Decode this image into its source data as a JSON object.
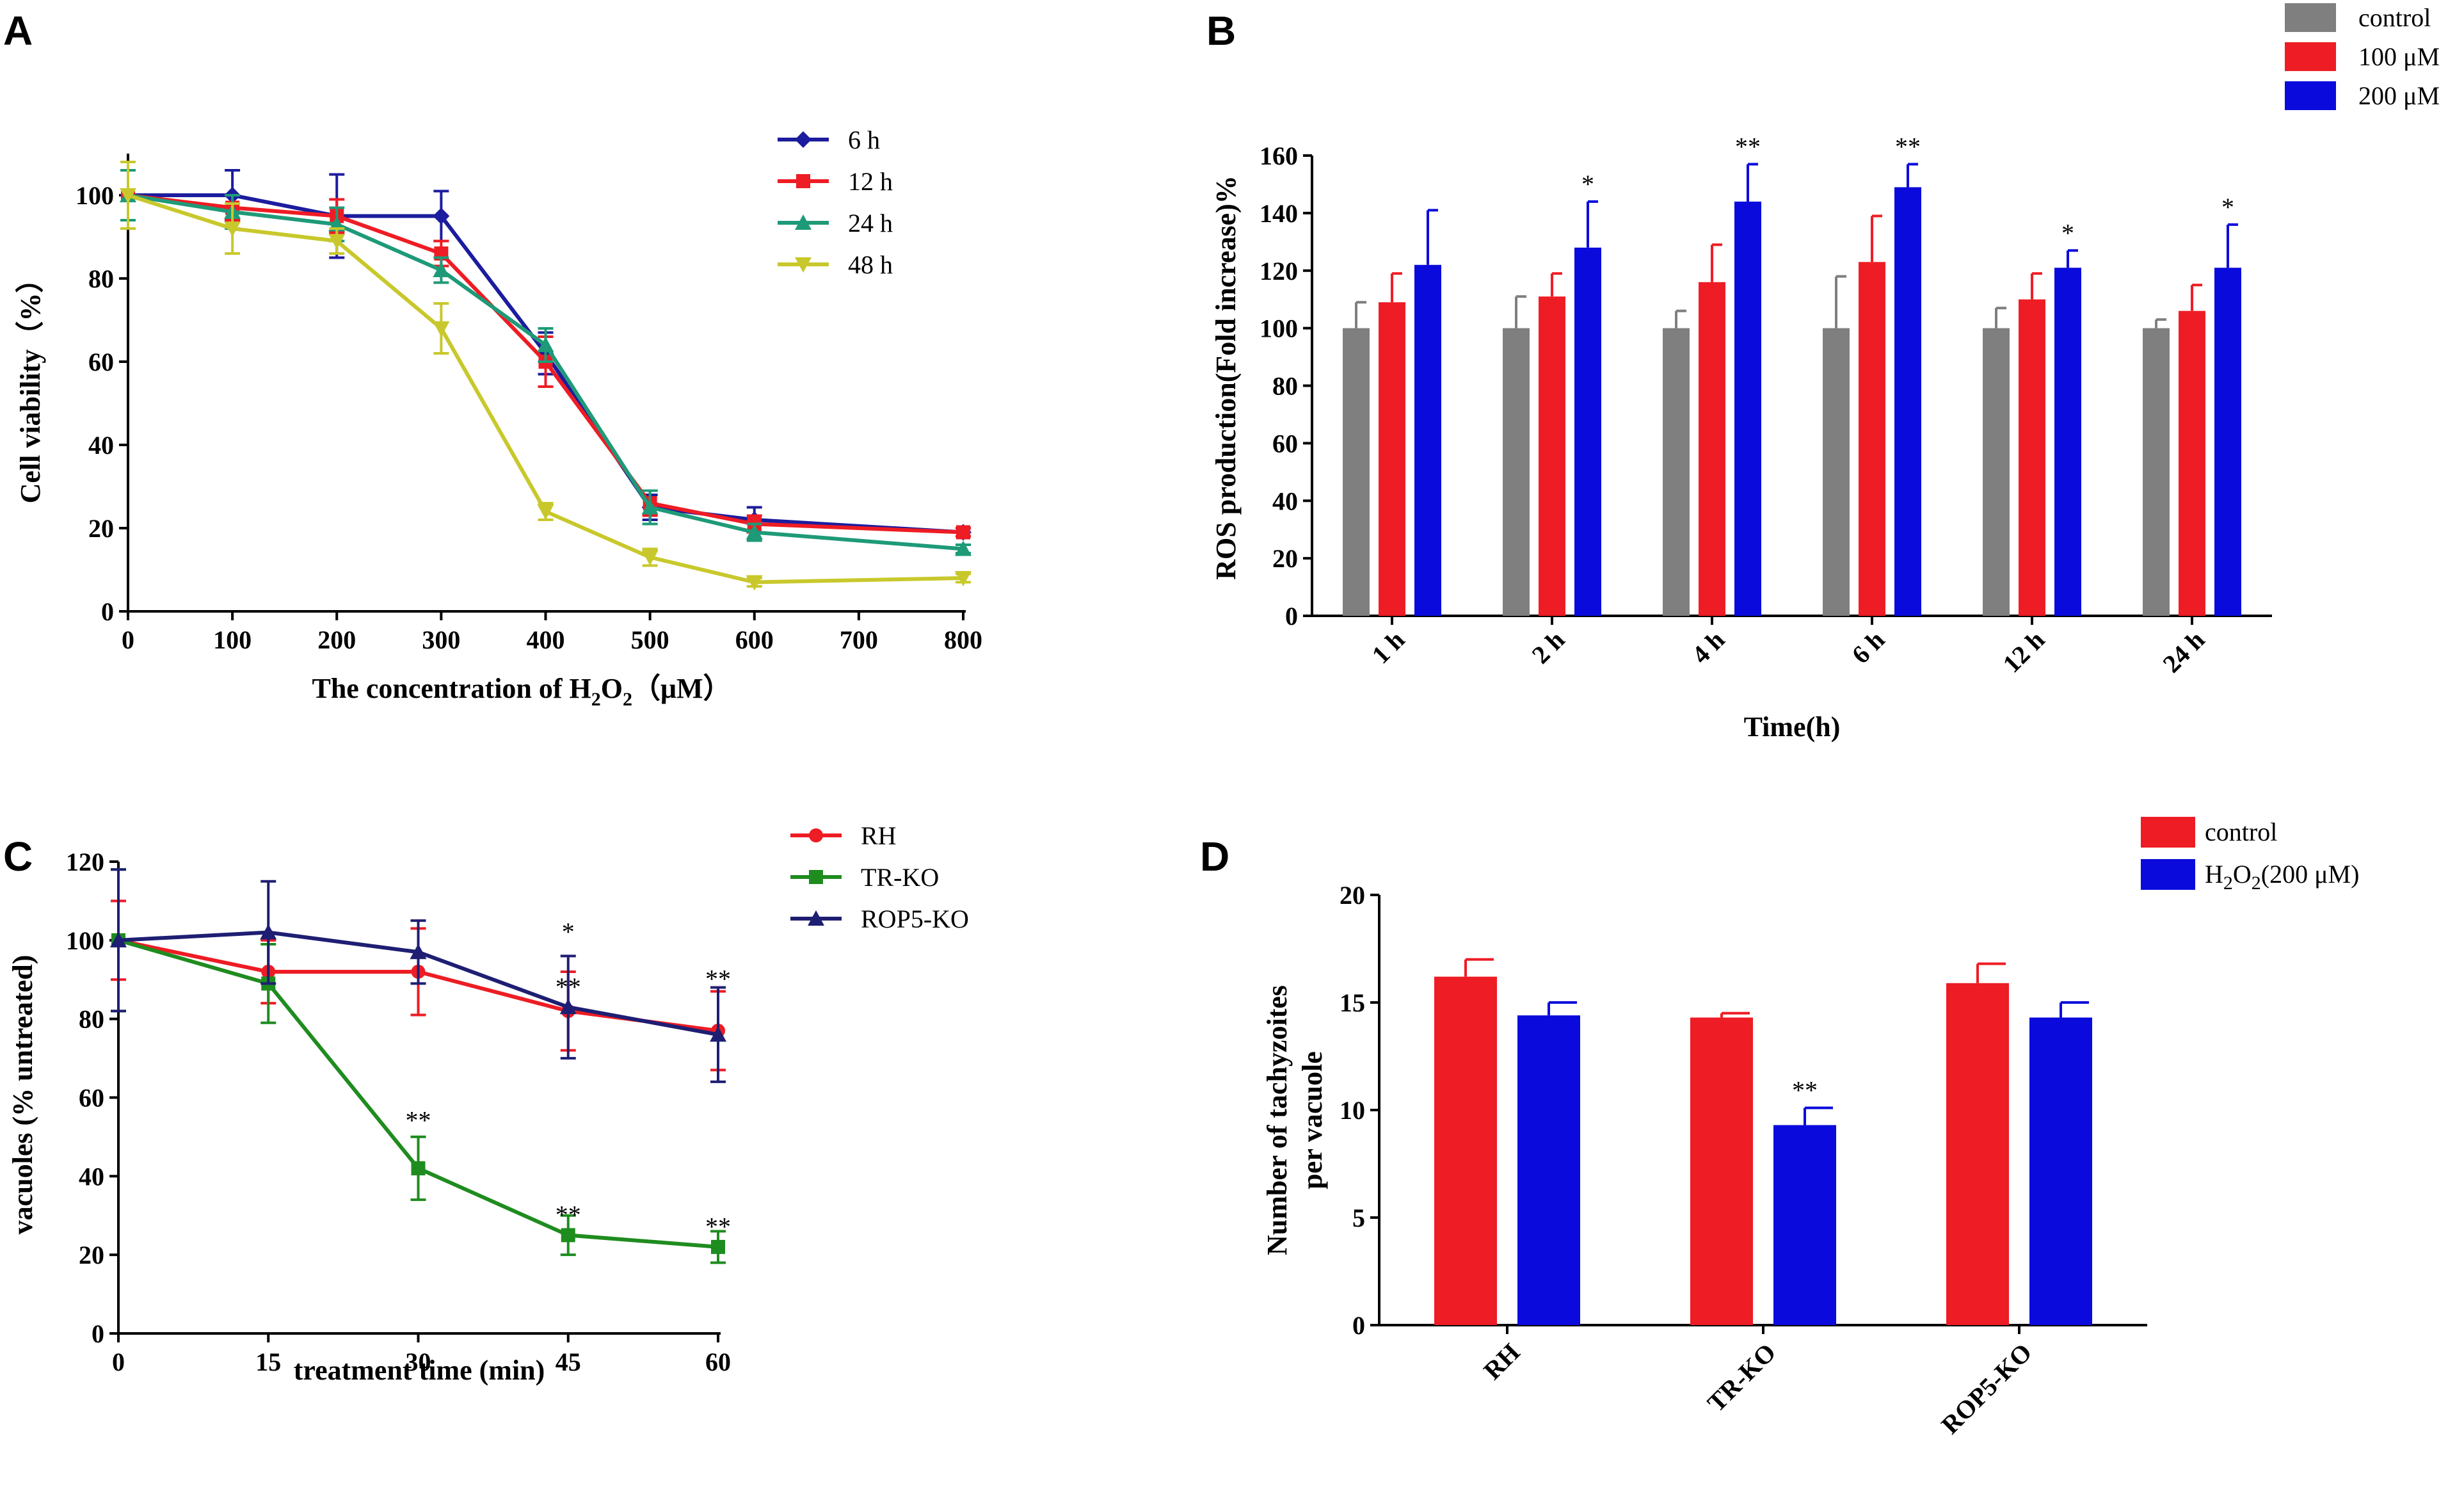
{
  "colors": {
    "navy": "#1c1c9e",
    "red": "#ee1c24",
    "teal": "#1e9a78",
    "olive": "#c8c82c",
    "green": "#1f8c1f",
    "darkblue": "#1e1e73",
    "gray": "#7f7f7f",
    "blue": "#0a0adc"
  },
  "chart_data": [
    {
      "panel": "A",
      "type": "line",
      "xlabel": "The concentration of H",
      "xlabel_sub": "2",
      "xlabel_o": "O",
      "xlabel_sub2": "2",
      "xlabel_unit": "（μM）",
      "ylabel": "Cell viability（%）",
      "x": [
        0,
        100,
        200,
        300,
        400,
        500,
        600,
        800
      ],
      "xticks": [
        "0",
        "100",
        "200",
        "300",
        "400",
        "500",
        "600",
        "700",
        "800"
      ],
      "xtick_values": [
        0,
        100,
        200,
        300,
        400,
        500,
        600,
        700,
        800
      ],
      "yticks": [
        "0",
        "20",
        "40",
        "60",
        "80",
        "100"
      ],
      "ytick_values": [
        0,
        20,
        40,
        60,
        80,
        100
      ],
      "xlim": [
        0,
        800
      ],
      "ylim": [
        0,
        110
      ],
      "series": [
        {
          "name": "6 h",
          "color": "#1c1c9e",
          "marker": "diamond",
          "values": [
            100,
            100,
            95,
            95,
            62,
            25,
            22,
            19
          ],
          "err": [
            8,
            6,
            10,
            6,
            5,
            3,
            3,
            1
          ]
        },
        {
          "name": "12 h",
          "color": "#ee1c24",
          "marker": "square",
          "values": [
            100,
            97,
            95,
            86,
            60,
            26,
            21,
            19
          ],
          "err": [
            6,
            3,
            4,
            3,
            6,
            3,
            2,
            1
          ]
        },
        {
          "name": "24 h",
          "color": "#1e9a78",
          "marker": "triangle-up",
          "values": [
            100,
            96,
            93,
            82,
            64,
            25,
            19,
            15
          ],
          "err": [
            6,
            4,
            4,
            3,
            4,
            4,
            2,
            1
          ]
        },
        {
          "name": "48 h",
          "color": "#c8c82c",
          "marker": "triangle-down",
          "values": [
            100,
            92,
            89,
            68,
            24,
            13,
            7,
            8
          ],
          "err": [
            8,
            6,
            3,
            6,
            2,
            2,
            1,
            1
          ]
        }
      ]
    },
    {
      "panel": "B",
      "type": "bar",
      "xlabel": "Time(h)",
      "ylabel": "ROS production(Fold increase)%",
      "categories": [
        "1 h",
        "2 h",
        "4 h",
        "6 h",
        "12 h",
        "24 h"
      ],
      "yticks": [
        "0",
        "20",
        "40",
        "60",
        "80",
        "100",
        "120",
        "140",
        "160"
      ],
      "ytick_values": [
        0,
        20,
        40,
        60,
        80,
        100,
        120,
        140,
        160
      ],
      "ylim": [
        0,
        160
      ],
      "series": [
        {
          "name": "control",
          "color": "#7f7f7f",
          "values": [
            100,
            100,
            100,
            100,
            100,
            100
          ],
          "err": [
            9,
            11,
            6,
            18,
            7,
            3
          ]
        },
        {
          "name": "100 μM",
          "color": "#ee1c24",
          "values": [
            109,
            111,
            116,
            123,
            110,
            106
          ],
          "err": [
            10,
            8,
            13,
            16,
            9,
            9
          ]
        },
        {
          "name": "200 μM",
          "color": "#0a0adc",
          "values": [
            122,
            128,
            144,
            149,
            121,
            121
          ],
          "err": [
            19,
            16,
            13,
            8,
            6,
            15
          ]
        }
      ],
      "annotations": [
        "",
        "*",
        "**",
        "**",
        "*",
        "*"
      ]
    },
    {
      "panel": "C",
      "type": "line",
      "xlabel": "treatment time (min)",
      "ylabel": "vacuoles (% untreated)",
      "x": [
        0,
        15,
        30,
        45,
        60
      ],
      "xticks": [
        "0",
        "15",
        "30",
        "45",
        "60"
      ],
      "xtick_values": [
        0,
        15,
        30,
        45,
        60
      ],
      "yticks": [
        "0",
        "20",
        "40",
        "60",
        "80",
        "100",
        "120"
      ],
      "ytick_values": [
        0,
        20,
        40,
        60,
        80,
        100,
        120
      ],
      "xlim": [
        0,
        60
      ],
      "ylim": [
        0,
        120
      ],
      "series": [
        {
          "name": "RH",
          "color": "#ee1c24",
          "marker": "circle",
          "values": [
            100,
            92,
            92,
            82,
            77
          ],
          "err": [
            10,
            8,
            11,
            10,
            10
          ]
        },
        {
          "name": "TR-KO",
          "color": "#1f8c1f",
          "marker": "square",
          "values": [
            100,
            89,
            42,
            25,
            22
          ],
          "err": [
            18,
            10,
            8,
            5,
            4
          ]
        },
        {
          "name": "ROP5-KO",
          "color": "#1e1e73",
          "marker": "triangle-up",
          "values": [
            100,
            102,
            97,
            83,
            76
          ],
          "err": [
            18,
            13,
            8,
            13,
            12
          ]
        }
      ],
      "annotations": [
        {
          "x": 30,
          "label": "**",
          "y": 52
        },
        {
          "x": 45,
          "label": "*",
          "y": 100
        },
        {
          "x": 45,
          "label": "**",
          "y": 86
        },
        {
          "x": 45,
          "label": "**",
          "y": 28
        },
        {
          "x": 60,
          "label": "**",
          "y": 88
        },
        {
          "x": 60,
          "label": "**",
          "y": 25
        }
      ]
    },
    {
      "panel": "D",
      "type": "bar",
      "xlabel": "",
      "ylabel_line1": "Number of tachyzoites",
      "ylabel_line2": "per vacuole",
      "categories": [
        "RH",
        "TR-KO",
        "ROP5-KO"
      ],
      "yticks": [
        "0",
        "5",
        "10",
        "15",
        "20"
      ],
      "ytick_values": [
        0,
        5,
        10,
        15,
        20
      ],
      "ylim": [
        0,
        20
      ],
      "series": [
        {
          "name": "control",
          "color": "#ee1c24",
          "values": [
            16.2,
            14.3,
            15.9
          ],
          "err": [
            0.8,
            0.2,
            0.9
          ]
        },
        {
          "name": "H2O2(200 μM)",
          "legend_main": "H",
          "legend_sub": "2",
          "legend_o": "O",
          "legend_sub2": "2",
          "legend_rest": "(200 μM)",
          "color": "#0a0adc",
          "values": [
            14.4,
            9.3,
            14.3
          ],
          "err": [
            0.6,
            0.8,
            0.7
          ]
        }
      ],
      "annotations": [
        "",
        "**",
        ""
      ]
    }
  ]
}
